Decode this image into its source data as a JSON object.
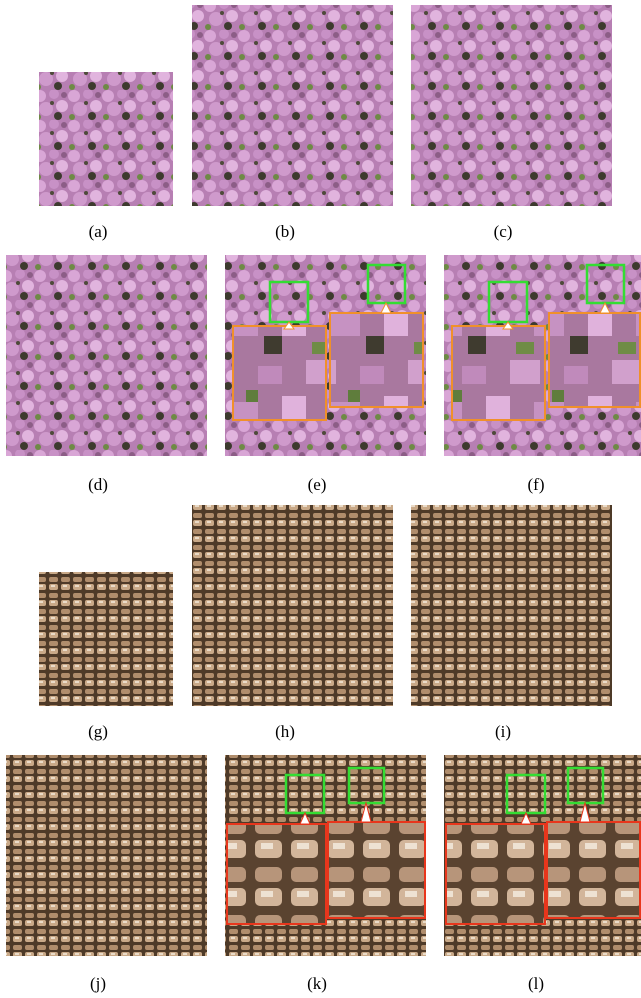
{
  "captions": [
    "(a)",
    "(b)",
    "(c)",
    "(d)",
    "(e)",
    "(f)",
    "(g)",
    "(h)",
    "(i)",
    "(j)",
    "(k)",
    "(l)"
  ]
}
